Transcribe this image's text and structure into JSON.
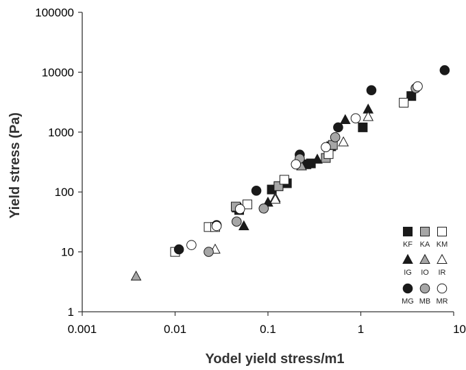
{
  "chart_data": {
    "type": "scatter",
    "x_scale": "log",
    "y_scale": "log",
    "xlabel": "Yodel yield stress/m1",
    "ylabel": "Yield stress (Pa)",
    "xlim": [
      0.001,
      10
    ],
    "ylim": [
      1,
      100000
    ],
    "x_ticks": [
      "0.001",
      "0.01",
      "0.1",
      "1",
      "10"
    ],
    "y_ticks": [
      "1",
      "10",
      "100",
      "1000",
      "10000",
      "100000"
    ],
    "grid": false,
    "legend_position": "bottom-right",
    "series": [
      {
        "name": "KF",
        "marker": "square",
        "fill": "#1a1a1a",
        "points": [
          [
            0.046,
            55
          ],
          [
            0.049,
            50
          ],
          [
            0.11,
            110
          ],
          [
            0.13,
            125
          ],
          [
            0.26,
            290
          ],
          [
            0.29,
            300
          ],
          [
            0.16,
            140
          ],
          [
            0.48,
            580
          ],
          [
            1.05,
            1200
          ],
          [
            3.5,
            4000
          ]
        ]
      },
      {
        "name": "KA",
        "marker": "square",
        "fill": "#a6a6a6",
        "points": [
          [
            0.045,
            57
          ],
          [
            0.13,
            125
          ],
          [
            0.42,
            370
          ],
          [
            0.5,
            610
          ]
        ]
      },
      {
        "name": "KM",
        "marker": "square",
        "fill": "#ffffff",
        "points": [
          [
            0.01,
            10
          ],
          [
            0.023,
            26
          ],
          [
            0.027,
            26
          ],
          [
            0.06,
            62
          ],
          [
            0.15,
            160
          ],
          [
            0.45,
            430
          ],
          [
            2.9,
            3100
          ]
        ]
      },
      {
        "name": "IG",
        "marker": "triangle",
        "fill": "#1a1a1a",
        "points": [
          [
            0.055,
            27
          ],
          [
            0.1,
            67
          ],
          [
            0.34,
            350
          ],
          [
            0.68,
            1600
          ],
          [
            1.2,
            2400
          ]
        ]
      },
      {
        "name": "IO",
        "marker": "triangle",
        "fill": "#a6a6a6",
        "points": [
          [
            0.0038,
            3.9
          ],
          [
            0.12,
            80
          ],
          [
            0.23,
            270
          ]
        ]
      },
      {
        "name": "IR",
        "marker": "triangle",
        "fill": "#ffffff",
        "points": [
          [
            0.027,
            11
          ],
          [
            0.12,
            75
          ],
          [
            0.65,
            680
          ],
          [
            1.2,
            1800
          ]
        ]
      },
      {
        "name": "MG",
        "marker": "circle",
        "fill": "#1a1a1a",
        "points": [
          [
            0.011,
            11
          ],
          [
            0.028,
            28
          ],
          [
            0.075,
            105
          ],
          [
            0.22,
            420
          ],
          [
            0.57,
            1200
          ],
          [
            1.3,
            5000
          ],
          [
            8.0,
            10800
          ]
        ]
      },
      {
        "name": "MB",
        "marker": "circle",
        "fill": "#a6a6a6",
        "points": [
          [
            0.023,
            10
          ],
          [
            0.046,
            32
          ],
          [
            0.09,
            53
          ],
          [
            0.22,
            360
          ],
          [
            0.53,
            820
          ],
          [
            3.9,
            5400
          ]
        ]
      },
      {
        "name": "MR",
        "marker": "circle",
        "fill": "#ffffff",
        "points": [
          [
            0.015,
            13
          ],
          [
            0.028,
            27
          ],
          [
            0.05,
            52
          ],
          [
            0.2,
            290
          ],
          [
            0.42,
            560
          ],
          [
            0.88,
            1700
          ],
          [
            4.1,
            5800
          ]
        ]
      }
    ]
  },
  "colors": {
    "axis": "#333333",
    "black_marker": "#1a1a1a",
    "grey_marker": "#a6a6a6",
    "white_marker": "#ffffff",
    "marker_stroke": "#1a1a1a"
  }
}
